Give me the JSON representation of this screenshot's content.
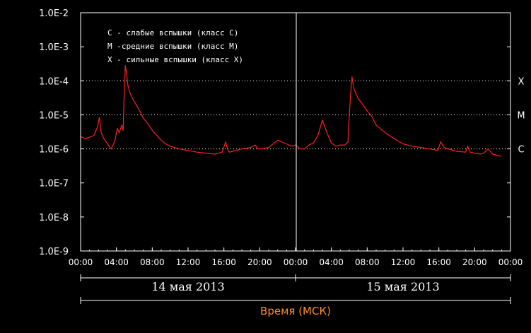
{
  "chart_data": {
    "type": "line",
    "title": "",
    "xlabel": "Время (МСК)",
    "ylabel": "",
    "y_scale": "log",
    "ylim": [
      1e-09,
      0.01
    ],
    "y_tick_labels": [
      "1.0E-9",
      "1.0E-8",
      "1.0E-7",
      "1.0E-6",
      "1.0E-5",
      "1.0E-4",
      "1.0E-3",
      "1.0E-2"
    ],
    "x_range_hours": [
      0,
      48
    ],
    "x_tick_labels": [
      "00:00",
      "04:00",
      "08:00",
      "12:00",
      "16:00",
      "20:00",
      "00:00",
      "04:00",
      "08:00",
      "12:00",
      "16:00",
      "20:00",
      "00:00"
    ],
    "days": [
      "14 мая 2013",
      "15 мая 2013"
    ],
    "flare_levels": [
      {
        "label": "C",
        "value": 1e-06
      },
      {
        "label": "M",
        "value": 1e-05
      },
      {
        "label": "X",
        "value": 0.0001
      }
    ],
    "legend": {
      "placement": "top-left",
      "entries": [
        "C - слабые вспышки (класс C)",
        "M -средние вспышки (класс M)",
        "X - сильные вспышки (класс X)"
      ]
    },
    "grid": "dotted lines at flare levels",
    "colors": {
      "line": "#ff2020",
      "grid": "#ffffff",
      "axis_label": "#ff8c28",
      "background": "#000000"
    },
    "series": [
      {
        "x_hours": [
          0,
          0.5,
          1,
          1.5,
          1.9,
          2.1,
          2.3,
          2.6,
          3.0,
          3.4,
          3.8,
          4.1,
          4.3,
          4.6,
          4.75,
          4.85,
          5.0,
          5.15,
          5.3,
          5.5,
          5.8,
          6.2,
          6.6,
          7.0,
          7.5,
          8.0,
          8.5,
          9.0,
          9.5,
          10.0,
          11.0,
          12.0,
          13.0,
          14.0,
          15.0,
          15.8,
          16.2,
          16.4,
          16.6,
          17.0,
          18.0,
          19.0,
          19.5,
          19.8,
          20.2,
          21.0,
          22.0,
          23.0,
          23.5,
          24.0,
          24.5,
          25.0,
          25.5,
          26.0,
          26.5,
          27.0,
          27.5,
          28.0,
          28.5,
          29.0,
          29.5,
          29.85,
          30.0,
          30.15,
          30.3,
          30.5,
          31.0,
          31.5,
          32.0,
          32.5,
          33.0,
          34.0,
          35.0,
          36.0,
          37.0,
          38.0,
          39.0,
          39.9,
          40.2,
          40.6,
          41.0,
          42.0,
          43.0,
          43.2,
          43.5,
          44.0,
          44.3,
          44.6,
          45.0,
          45.5,
          46.0,
          46.5,
          47.0
        ],
        "y": [
          2.3e-06,
          2e-06,
          2.2e-06,
          2.5e-06,
          4.5e-06,
          8.5e-06,
          3e-06,
          2e-06,
          1.4e-06,
          1e-06,
          1.6e-06,
          4e-06,
          3e-06,
          5e-06,
          3.5e-06,
          3e-05,
          0.00028,
          0.00015,
          7e-05,
          4.5e-05,
          3e-05,
          2e-05,
          1.3e-05,
          8e-06,
          5.5e-06,
          3.5e-06,
          2.5e-06,
          1.8e-06,
          1.4e-06,
          1.2e-06,
          1e-06,
          9e-07,
          8e-07,
          7.5e-07,
          7e-07,
          8e-07,
          1.6e-06,
          1e-06,
          8e-07,
          8.5e-07,
          1e-06,
          1.1e-06,
          1.3e-06,
          1e-06,
          1e-06,
          1.1e-06,
          1.8e-06,
          1.4e-06,
          1.2e-06,
          1.3e-06,
          1e-06,
          1e-06,
          1.3e-06,
          1.5e-06,
          2.5e-06,
          7e-06,
          3e-06,
          1.5e-06,
          1.2e-06,
          1.3e-06,
          1.3e-06,
          1.6e-06,
          1e-05,
          4e-05,
          0.00013,
          6e-05,
          3e-05,
          2e-05,
          1.3e-05,
          9e-06,
          5e-06,
          3e-06,
          2e-06,
          1.4e-06,
          1.2e-06,
          1.1e-06,
          1e-06,
          9e-07,
          1.6e-06,
          1.1e-06,
          1e-06,
          8.5e-07,
          8e-07,
          1.2e-06,
          8e-07,
          7.5e-07,
          7.5e-07,
          7e-07,
          7.5e-07,
          1e-06,
          7e-07,
          6.5e-07,
          6e-07
        ]
      }
    ]
  }
}
